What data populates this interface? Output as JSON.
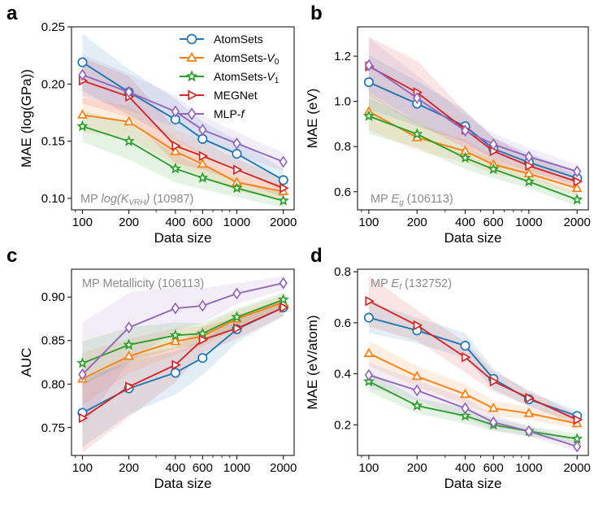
{
  "legend": {
    "entries": [
      {
        "name": "AtomSets",
        "sub": ""
      },
      {
        "name": "AtomSets-V",
        "sub": "0"
      },
      {
        "name": "AtomSets-V",
        "sub": "1"
      },
      {
        "name": "MEGNet",
        "sub": ""
      },
      {
        "name": "MLP-f",
        "sub": ""
      }
    ]
  },
  "series_styles": [
    {
      "name": "AtomSets",
      "color": "#1f77b4",
      "marker": "circle"
    },
    {
      "name": "AtomSets-V0",
      "color": "#ff7f0e",
      "marker": "triangle-up"
    },
    {
      "name": "AtomSets-V1",
      "color": "#2ca02c",
      "marker": "star"
    },
    {
      "name": "MEGNet",
      "color": "#d62728",
      "marker": "triangle-right"
    },
    {
      "name": "MLP-f",
      "color": "#9467bd",
      "marker": "diamond"
    }
  ],
  "chart_data": [
    {
      "type": "line",
      "panel_label": "a",
      "annotation": {
        "prefix": "MP ",
        "italic": "log(K",
        "sub": "VRH",
        "italic_end": ")",
        "suffix": " (10987)"
      },
      "xlabel": "Data size",
      "ylabel": "MAE (log(GPa))",
      "xscale": "log",
      "x": [
        100,
        200,
        400,
        600,
        1000,
        2000
      ],
      "xticks": [
        "100",
        "200",
        "400",
        "600",
        "1000",
        "2000"
      ],
      "ylim": [
        0.09,
        0.25
      ],
      "yticks": [
        "0.10",
        "0.15",
        "0.20",
        "0.25"
      ],
      "series": [
        {
          "name": "AtomSets",
          "values": [
            0.219,
            0.193,
            0.169,
            0.152,
            0.139,
            0.116
          ],
          "band": [
            0.025,
            0.02,
            0.018,
            0.015,
            0.012,
            0.01
          ]
        },
        {
          "name": "AtomSets-V0",
          "values": [
            0.173,
            0.167,
            0.141,
            0.13,
            0.114,
            0.106
          ],
          "band": [
            0.015,
            0.014,
            0.012,
            0.01,
            0.008,
            0.006
          ]
        },
        {
          "name": "AtomSets-V1",
          "values": [
            0.163,
            0.15,
            0.126,
            0.118,
            0.109,
            0.098
          ],
          "band": [
            0.014,
            0.016,
            0.012,
            0.01,
            0.008,
            0.006
          ]
        },
        {
          "name": "MEGNet",
          "values": [
            0.203,
            0.189,
            0.146,
            0.137,
            0.125,
            0.109
          ],
          "band": [
            0.02,
            0.018,
            0.015,
            0.012,
            0.01,
            0.008
          ]
        },
        {
          "name": "MLP-f",
          "values": [
            0.208,
            0.193,
            0.176,
            0.16,
            0.148,
            0.132
          ],
          "band": [
            0.018,
            0.016,
            0.014,
            0.012,
            0.01,
            0.008
          ]
        }
      ]
    },
    {
      "type": "line",
      "panel_label": "b",
      "annotation": {
        "prefix": "MP ",
        "italic": "E",
        "sub": "g",
        "italic_end": "",
        "suffix": " (106113)"
      },
      "xlabel": "Data size",
      "ylabel": "MAE (eV)",
      "xscale": "log",
      "x": [
        100,
        200,
        400,
        600,
        1000,
        2000
      ],
      "xticks": [
        "100",
        "200",
        "400",
        "600",
        "1000",
        "2000"
      ],
      "ylim": [
        0.52,
        1.33
      ],
      "yticks": [
        "0.6",
        "0.8",
        "1.0",
        "1.2"
      ],
      "series": [
        {
          "name": "AtomSets",
          "values": [
            1.085,
            0.99,
            0.89,
            0.79,
            0.73,
            0.66
          ],
          "band": [
            0.12,
            0.1,
            0.07,
            0.05,
            0.04,
            0.03
          ]
        },
        {
          "name": "AtomSets-V0",
          "values": [
            0.955,
            0.84,
            0.78,
            0.72,
            0.68,
            0.615
          ],
          "band": [
            0.08,
            0.06,
            0.05,
            0.04,
            0.03,
            0.03
          ]
        },
        {
          "name": "AtomSets-V1",
          "values": [
            0.935,
            0.855,
            0.75,
            0.7,
            0.645,
            0.565
          ],
          "band": [
            0.08,
            0.06,
            0.05,
            0.04,
            0.03,
            0.03
          ]
        },
        {
          "name": "MEGNet",
          "values": [
            1.155,
            1.04,
            0.875,
            0.78,
            0.715,
            0.645
          ],
          "band": [
            0.13,
            0.14,
            0.08,
            0.06,
            0.04,
            0.03
          ]
        },
        {
          "name": "MLP-f",
          "values": [
            1.16,
            1.015,
            0.87,
            0.81,
            0.755,
            0.69
          ],
          "band": [
            0.12,
            0.1,
            0.07,
            0.05,
            0.04,
            0.03
          ]
        }
      ]
    },
    {
      "type": "line",
      "panel_label": "c",
      "annotation": {
        "prefix": "MP Metallicity (106113)",
        "italic": "",
        "sub": "",
        "italic_end": "",
        "suffix": ""
      },
      "xlabel": "Data size",
      "ylabel": "AUC",
      "xscale": "log",
      "x": [
        100,
        200,
        400,
        600,
        1000,
        2000
      ],
      "xticks": [
        "100",
        "200",
        "400",
        "600",
        "1000",
        "2000"
      ],
      "ylim": [
        0.718,
        0.932
      ],
      "yticks": [
        "0.75",
        "0.80",
        "0.85",
        "0.90"
      ],
      "series": [
        {
          "name": "AtomSets",
          "values": [
            0.767,
            0.795,
            0.813,
            0.83,
            0.863,
            0.888
          ],
          "band": [
            0.04,
            0.03,
            0.025,
            0.02,
            0.015,
            0.01
          ]
        },
        {
          "name": "AtomSets-V0",
          "values": [
            0.806,
            0.832,
            0.849,
            0.855,
            0.875,
            0.894
          ],
          "band": [
            0.03,
            0.02,
            0.015,
            0.012,
            0.01,
            0.008
          ]
        },
        {
          "name": "AtomSets-V1",
          "values": [
            0.824,
            0.845,
            0.856,
            0.858,
            0.877,
            0.897
          ],
          "band": [
            0.025,
            0.02,
            0.015,
            0.012,
            0.01,
            0.008
          ]
        },
        {
          "name": "MEGNet",
          "values": [
            0.761,
            0.797,
            0.822,
            0.851,
            0.864,
            0.888
          ],
          "band": [
            0.04,
            0.035,
            0.02,
            0.015,
            0.012,
            0.01
          ]
        },
        {
          "name": "MLP-f",
          "values": [
            0.811,
            0.865,
            0.887,
            0.89,
            0.904,
            0.916
          ],
          "band": [
            0.06,
            0.04,
            0.025,
            0.02,
            0.012,
            0.008
          ]
        }
      ]
    },
    {
      "type": "line",
      "panel_label": "d",
      "annotation": {
        "prefix": "MP ",
        "italic": "E",
        "sub": "f",
        "italic_end": "",
        "suffix": " (132752)"
      },
      "xlabel": "Data size",
      "ylabel": "MAE (eV/atom)",
      "xscale": "log",
      "x": [
        100,
        200,
        400,
        600,
        1000,
        2000
      ],
      "xticks": [
        "100",
        "200",
        "400",
        "600",
        "1000",
        "2000"
      ],
      "ylim": [
        0.08,
        0.81
      ],
      "yticks": [
        "0.2",
        "0.4",
        "0.6",
        "0.8"
      ],
      "series": [
        {
          "name": "AtomSets",
          "values": [
            0.62,
            0.57,
            0.51,
            0.38,
            0.3,
            0.235
          ],
          "band": [
            0.06,
            0.05,
            0.05,
            0.04,
            0.03,
            0.02
          ]
        },
        {
          "name": "AtomSets-V0",
          "values": [
            0.48,
            0.39,
            0.32,
            0.265,
            0.245,
            0.205
          ],
          "band": [
            0.05,
            0.04,
            0.04,
            0.03,
            0.025,
            0.02
          ]
        },
        {
          "name": "AtomSets-V1",
          "values": [
            0.37,
            0.275,
            0.235,
            0.2,
            0.175,
            0.145
          ],
          "band": [
            0.04,
            0.03,
            0.03,
            0.025,
            0.02,
            0.02
          ]
        },
        {
          "name": "MEGNet",
          "values": [
            0.685,
            0.59,
            0.465,
            0.37,
            0.305,
            0.22
          ],
          "band": [
            0.1,
            0.06,
            0.06,
            0.04,
            0.03,
            0.02
          ]
        },
        {
          "name": "MLP-f",
          "values": [
            0.395,
            0.335,
            0.265,
            0.21,
            0.175,
            0.115
          ],
          "band": [
            0.05,
            0.04,
            0.04,
            0.03,
            0.02,
            0.02
          ]
        }
      ]
    }
  ]
}
